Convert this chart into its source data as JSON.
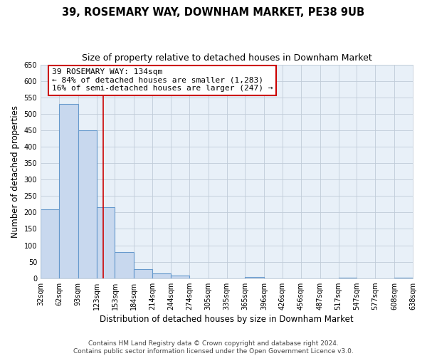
{
  "title": "39, ROSEMARY WAY, DOWNHAM MARKET, PE38 9UB",
  "subtitle": "Size of property relative to detached houses in Downham Market",
  "xlabel": "Distribution of detached houses by size in Downham Market",
  "ylabel": "Number of detached properties",
  "bar_edges": [
    32,
    62,
    93,
    123,
    153,
    184,
    214,
    244,
    274,
    305,
    335,
    365,
    396,
    426,
    456,
    487,
    517,
    547,
    577,
    608,
    638
  ],
  "bar_heights": [
    210,
    530,
    450,
    215,
    80,
    28,
    15,
    8,
    0,
    0,
    0,
    3,
    0,
    0,
    0,
    0,
    1,
    0,
    0,
    2
  ],
  "bar_facecolor": "#c8d8ee",
  "bar_edgecolor": "#6699cc",
  "property_line_x": 134,
  "property_line_color": "#cc0000",
  "annotation_line1": "39 ROSEMARY WAY: 134sqm",
  "annotation_line2": "← 84% of detached houses are smaller (1,283)",
  "annotation_line3": "16% of semi-detached houses are larger (247) →",
  "annotation_box_edgecolor": "#cc0000",
  "annotation_box_facecolor": "#ffffff",
  "plot_bg_color": "#e8f0f8",
  "fig_bg_color": "#ffffff",
  "ylim": [
    0,
    650
  ],
  "xlim": [
    32,
    638
  ],
  "tick_labels": [
    "32sqm",
    "62sqm",
    "93sqm",
    "123sqm",
    "153sqm",
    "184sqm",
    "214sqm",
    "244sqm",
    "274sqm",
    "305sqm",
    "335sqm",
    "365sqm",
    "396sqm",
    "426sqm",
    "456sqm",
    "487sqm",
    "517sqm",
    "547sqm",
    "577sqm",
    "608sqm",
    "638sqm"
  ],
  "yticks": [
    0,
    50,
    100,
    150,
    200,
    250,
    300,
    350,
    400,
    450,
    500,
    550,
    600,
    650
  ],
  "footer_text": "Contains HM Land Registry data © Crown copyright and database right 2024.\nContains public sector information licensed under the Open Government Licence v3.0.",
  "grid_color": "#c0ccd8",
  "title_fontsize": 10.5,
  "subtitle_fontsize": 9,
  "axis_label_fontsize": 8.5,
  "tick_fontsize": 7,
  "annotation_fontsize": 8,
  "footer_fontsize": 6.5
}
